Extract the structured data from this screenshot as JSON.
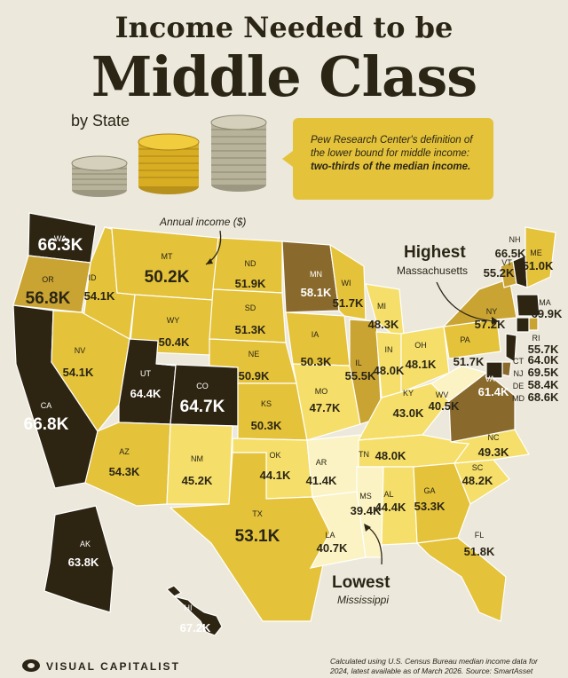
{
  "header": {
    "title_line1": "Income Needed to be",
    "title_line2": "Middle Class",
    "subtitle": "by State"
  },
  "callout": {
    "line1": "Pew Research Center's definition of",
    "line2": "the lower bound for middle income:",
    "line3": "two-thirds of the median income."
  },
  "annotations": {
    "annual_income": "Annual income ($)",
    "highest_label": "Highest",
    "highest_state": "Massachusetts",
    "lowest_label": "Lowest",
    "lowest_state": "Mississippi"
  },
  "footer": {
    "brand": "VISUAL CAPITALIST",
    "source_line1": "Calculated using U.S. Census Bureau median income data for",
    "source_line2": "2024, latest available as of March 2026. Source: SmartAsset"
  },
  "colors": {
    "background": "#ece8dc",
    "level_low": "#fbf3c4",
    "level_mid_low": "#f5df6a",
    "level_mid": "#e4c23a",
    "level_mid_high": "#c9a433",
    "level_high": "#8a6a2c",
    "level_top": "#2e2412"
  },
  "chart_data": {
    "type": "map",
    "unit": "K",
    "states": [
      {
        "code": "WA",
        "value": 66.3
      },
      {
        "code": "OR",
        "value": 56.8
      },
      {
        "code": "CA",
        "value": 66.8
      },
      {
        "code": "ID",
        "value": 54.1
      },
      {
        "code": "NV",
        "value": 54.1
      },
      {
        "code": "MT",
        "value": 50.2
      },
      {
        "code": "WY",
        "value": 50.4
      },
      {
        "code": "UT",
        "value": 64.4
      },
      {
        "code": "CO",
        "value": 64.7
      },
      {
        "code": "AZ",
        "value": 54.3
      },
      {
        "code": "NM",
        "value": 45.2
      },
      {
        "code": "ND",
        "value": 51.9
      },
      {
        "code": "SD",
        "value": 51.3
      },
      {
        "code": "NE",
        "value": 50.9
      },
      {
        "code": "KS",
        "value": 50.3
      },
      {
        "code": "OK",
        "value": 44.1
      },
      {
        "code": "TX",
        "value": 53.1
      },
      {
        "code": "MN",
        "value": 58.1
      },
      {
        "code": "IA",
        "value": 50.3
      },
      {
        "code": "MO",
        "value": 47.7
      },
      {
        "code": "AR",
        "value": 41.4
      },
      {
        "code": "LA",
        "value": 40.7
      },
      {
        "code": "WI",
        "value": 51.7
      },
      {
        "code": "IL",
        "value": 55.5
      },
      {
        "code": "MI",
        "value": 48.3
      },
      {
        "code": "IN",
        "value": 48.0
      },
      {
        "code": "OH",
        "value": 48.1
      },
      {
        "code": "KY",
        "value": 43.0
      },
      {
        "code": "TN",
        "value": 48.0
      },
      {
        "code": "MS",
        "value": 39.4
      },
      {
        "code": "AL",
        "value": 44.4
      },
      {
        "code": "GA",
        "value": 53.3
      },
      {
        "code": "FL",
        "value": 51.8
      },
      {
        "code": "SC",
        "value": 48.2
      },
      {
        "code": "NC",
        "value": 49.3
      },
      {
        "code": "VA",
        "value": 61.4
      },
      {
        "code": "WV",
        "value": 40.5
      },
      {
        "code": "PA",
        "value": 51.7
      },
      {
        "code": "NY",
        "value": 57.2
      },
      {
        "code": "VT",
        "value": 55.2
      },
      {
        "code": "NH",
        "value": 66.5
      },
      {
        "code": "ME",
        "value": 51.0
      },
      {
        "code": "MA",
        "value": 69.9
      },
      {
        "code": "RI",
        "value": 55.7
      },
      {
        "code": "CT",
        "value": 64.0
      },
      {
        "code": "NJ",
        "value": 69.5
      },
      {
        "code": "DE",
        "value": 58.4
      },
      {
        "code": "MD",
        "value": 68.6
      },
      {
        "code": "AK",
        "value": 63.8
      },
      {
        "code": "HI",
        "value": 67.2
      }
    ]
  }
}
